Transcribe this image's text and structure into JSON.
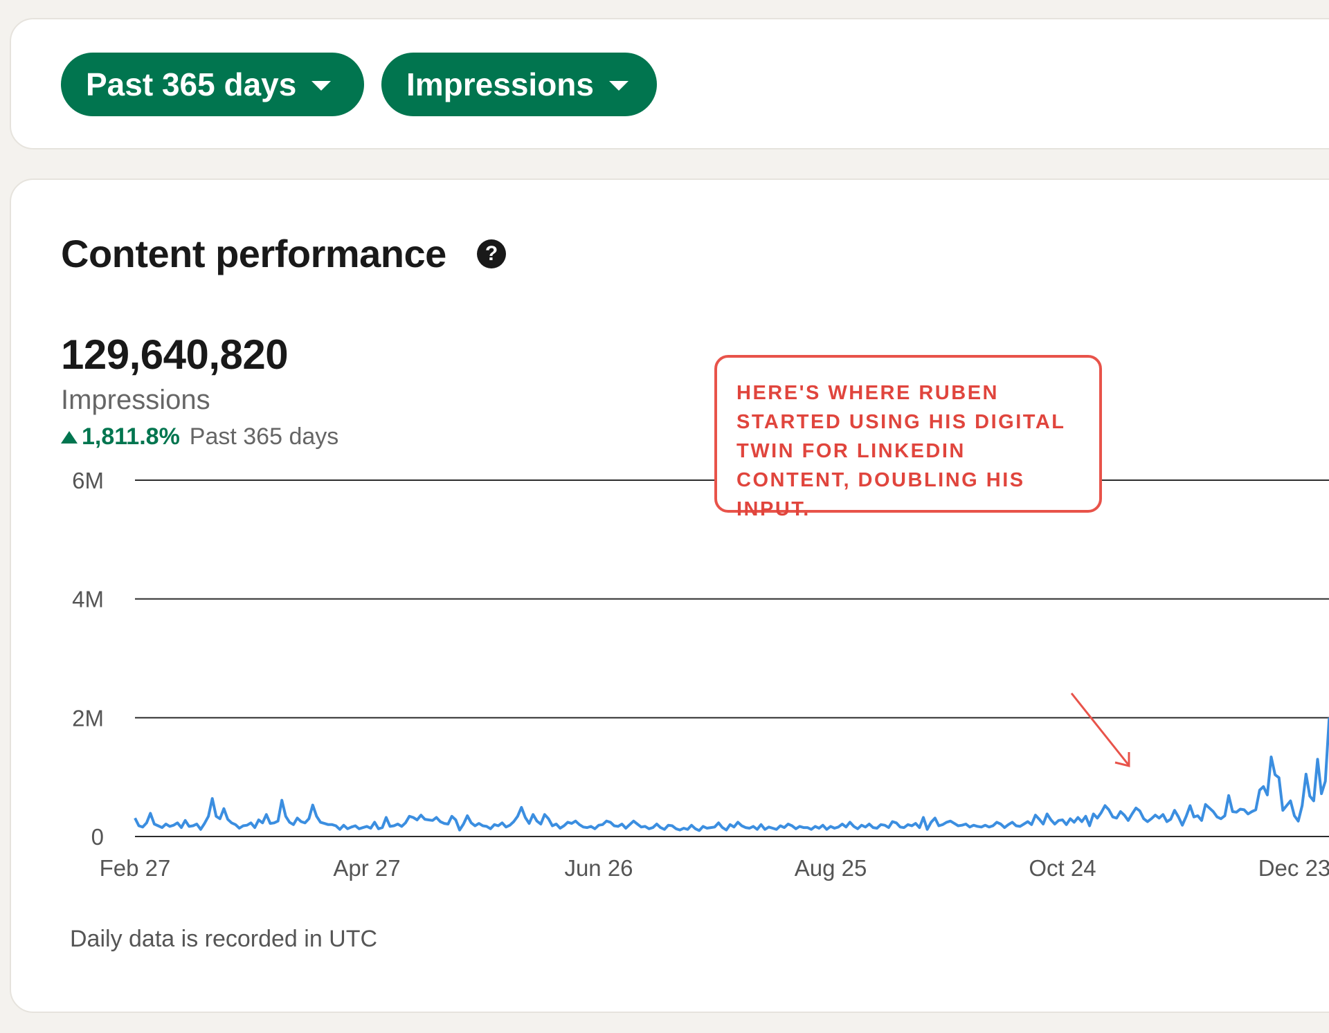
{
  "filters": {
    "range_label": "Past 365 days",
    "metric_label": "Impressions"
  },
  "card": {
    "title": "Content performance",
    "help_glyph": "?",
    "total_value": "129,640,820",
    "metric_name": "Impressions",
    "change_pct": "1,811.8%",
    "change_period": "Past 365 days",
    "footnote": "Daily data is recorded in UTC"
  },
  "annotation": {
    "text": "HERE'S WHERE RUBEN STARTED USING HIS DIGITAL TWIN FOR LINKEDIN CONTENT, DOUBLING HIS INPUT."
  },
  "colors": {
    "brand_green": "#01754f",
    "line_blue": "#3b8ee0",
    "callout_red": "#e8534a"
  },
  "icons": {
    "help": "question-circle-icon",
    "dropdown": "caret-down-icon",
    "trend": "triangle-up-icon"
  },
  "chart_data": {
    "type": "line",
    "title": "",
    "xlabel": "",
    "ylabel": "",
    "ylim": [
      0,
      6000000
    ],
    "y_ticks": [
      {
        "value": 0,
        "label": "0"
      },
      {
        "value": 2000000,
        "label": "2M"
      },
      {
        "value": 4000000,
        "label": "4M"
      },
      {
        "value": 6000000,
        "label": "6M"
      }
    ],
    "x_ticks": [
      "Feb 27",
      "Apr 27",
      "Jun 26",
      "Aug 25",
      "Oct 24",
      "Dec 23"
    ],
    "x_start": "Feb 27",
    "days_visible": 310,
    "grid": true,
    "series": [
      {
        "values": [
          310000,
          180000,
          160000,
          230000,
          390000,
          210000,
          180000,
          150000,
          210000,
          170000,
          190000,
          230000,
          150000,
          270000,
          170000,
          180000,
          210000,
          120000,
          220000,
          340000,
          640000,
          340000,
          300000,
          470000,
          290000,
          230000,
          200000,
          140000,
          180000,
          190000,
          230000,
          150000,
          280000,
          230000,
          370000,
          220000,
          230000,
          260000,
          610000,
          340000,
          240000,
          200000,
          310000,
          250000,
          230000,
          300000,
          530000,
          340000,
          240000,
          220000,
          200000,
          200000,
          180000,
          120000,
          190000,
          130000,
          160000,
          180000,
          130000,
          150000,
          170000,
          140000,
          240000,
          130000,
          150000,
          320000,
          170000,
          180000,
          210000,
          170000,
          230000,
          340000,
          320000,
          280000,
          360000,
          290000,
          280000,
          270000,
          320000,
          250000,
          220000,
          210000,
          340000,
          280000,
          110000,
          210000,
          350000,
          230000,
          180000,
          220000,
          180000,
          170000,
          130000,
          200000,
          180000,
          230000,
          160000,
          190000,
          250000,
          340000,
          490000,
          320000,
          220000,
          370000,
          260000,
          210000,
          370000,
          300000,
          180000,
          210000,
          140000,
          180000,
          240000,
          220000,
          260000,
          200000,
          160000,
          150000,
          170000,
          130000,
          190000,
          200000,
          260000,
          240000,
          180000,
          170000,
          210000,
          140000,
          200000,
          260000,
          210000,
          160000,
          170000,
          130000,
          150000,
          210000,
          150000,
          120000,
          190000,
          180000,
          130000,
          110000,
          140000,
          120000,
          190000,
          130000,
          100000,
          170000,
          140000,
          150000,
          160000,
          230000,
          150000,
          110000,
          200000,
          160000,
          240000,
          180000,
          150000,
          140000,
          170000,
          120000,
          200000,
          120000,
          160000,
          140000,
          120000,
          180000,
          150000,
          210000,
          180000,
          130000,
          170000,
          150000,
          150000,
          120000,
          170000,
          140000,
          190000,
          120000,
          170000,
          140000,
          160000,
          210000,
          160000,
          240000,
          170000,
          130000,
          190000,
          160000,
          210000,
          150000,
          140000,
          200000,
          190000,
          150000,
          250000,
          230000,
          160000,
          150000,
          200000,
          180000,
          220000,
          150000,
          320000,
          120000,
          240000,
          310000,
          180000,
          200000,
          240000,
          260000,
          220000,
          180000,
          190000,
          210000,
          160000,
          190000,
          170000,
          160000,
          190000,
          160000,
          180000,
          240000,
          210000,
          150000,
          200000,
          240000,
          180000,
          170000,
          210000,
          250000,
          200000,
          360000,
          290000,
          210000,
          380000,
          280000,
          210000,
          270000,
          280000,
          200000,
          300000,
          240000,
          320000,
          250000,
          340000,
          180000,
          380000,
          310000,
          400000,
          520000,
          450000,
          330000,
          310000,
          420000,
          360000,
          270000,
          380000,
          480000,
          430000,
          300000,
          250000,
          300000,
          360000,
          310000,
          370000,
          250000,
          290000,
          440000,
          330000,
          190000,
          340000,
          520000,
          330000,
          350000,
          270000,
          540000,
          480000,
          420000,
          330000,
          300000,
          350000,
          690000,
          420000,
          410000,
          460000,
          450000,
          380000,
          420000,
          450000,
          780000,
          840000,
          700000,
          1340000,
          1040000,
          990000,
          440000,
          520000,
          600000,
          350000,
          260000,
          520000,
          1050000,
          680000,
          600000,
          1300000,
          720000,
          930000,
          2000000
        ]
      }
    ]
  }
}
